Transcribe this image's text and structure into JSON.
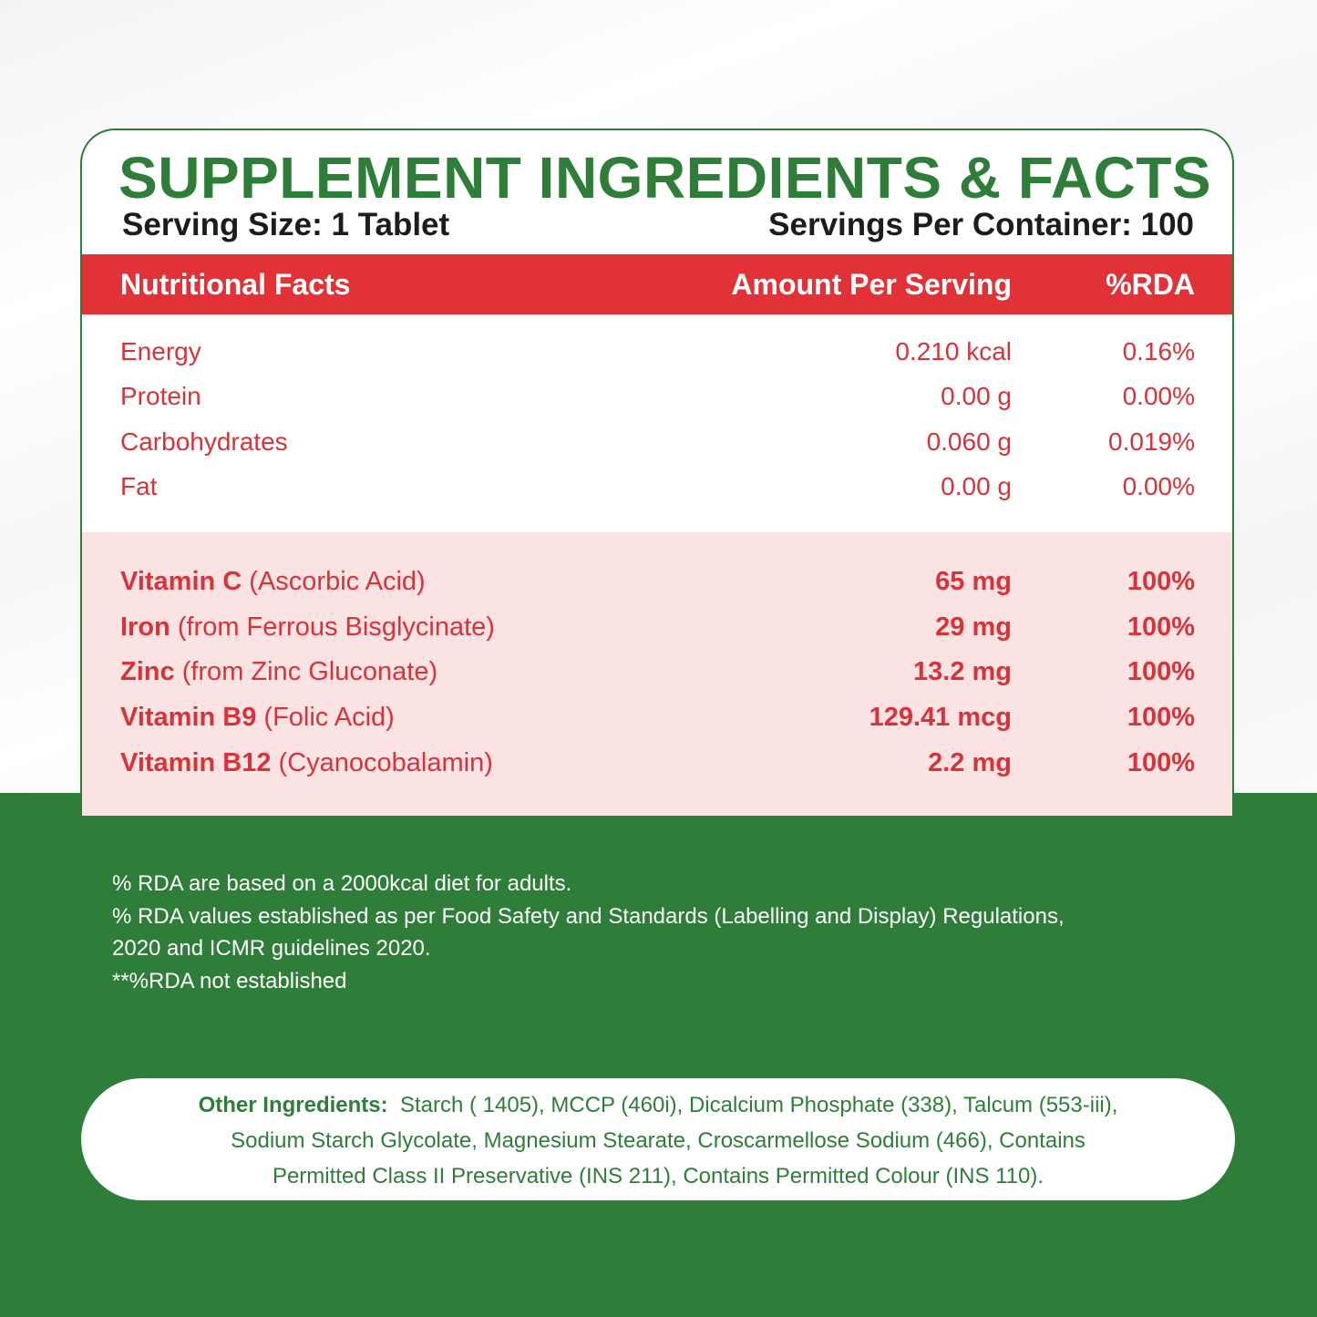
{
  "title": "SUPPLEMENT INGREDIENTS & FACTS",
  "serving_size": "Serving Size: 1 Tablet",
  "servings_per_container": "Servings Per Container: 100",
  "table_header": {
    "name": "Nutritional Facts",
    "amount": "Amount Per Serving",
    "rda": "%RDA"
  },
  "macros": [
    {
      "name": "Energy",
      "amount": "0.210 kcal",
      "rda": "0.16%"
    },
    {
      "name": "Protein",
      "amount": "0.00 g",
      "rda": "0.00%"
    },
    {
      "name": "Carbohydrates",
      "amount": "0.060 g",
      "rda": "0.019%"
    },
    {
      "name": "Fat",
      "amount": "0.00 g",
      "rda": "0.00%"
    }
  ],
  "vitamins": [
    {
      "name": "Vitamin C",
      "source": "(Ascorbic Acid)",
      "amount": "65 mg",
      "rda": "100%"
    },
    {
      "name": "Iron",
      "source": "(from Ferrous Bisglycinate)",
      "amount": "29 mg",
      "rda": "100%"
    },
    {
      "name": "Zinc",
      "source": "(from Zinc Gluconate)",
      "amount": "13.2 mg",
      "rda": "100%"
    },
    {
      "name": "Vitamin B9",
      "source": "(Folic Acid)",
      "amount": "129.41 mcg",
      "rda": "100%"
    },
    {
      "name": "Vitamin B12",
      "source": "(Cyanocobalamin)",
      "amount": "2.2 mg",
      "rda": "100%"
    }
  ],
  "notes": [
    "% RDA are based on a 2000kcal diet for adults.",
    "% RDA values established as per Food Safety and Standards (Labelling and Display) Regulations,",
    "2020 and ICMR guidelines 2020.",
    "**%RDA not established"
  ],
  "other_ingredients": {
    "label": "Other Ingredients:",
    "line1": "Starch ( 1405), MCCP (460i), Dicalcium Phosphate (338), Talcum (553-iii),",
    "line2": "Sodium Starch Glycolate, Magnesium Stearate, Croscarmellose Sodium (466), Contains",
    "line3": "Permitted Class II Preservative (INS 211), Contains Permitted Colour (INS 110)."
  },
  "colors": {
    "green": "#2e7d39",
    "red": "#e13238",
    "pink": "#fbe3e3",
    "text_red": "#d6333a"
  }
}
